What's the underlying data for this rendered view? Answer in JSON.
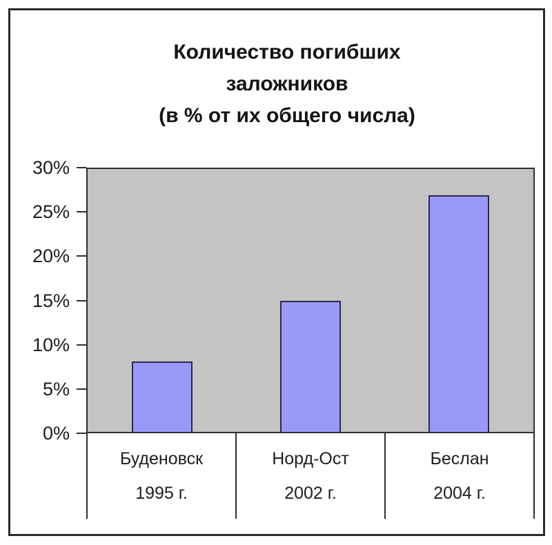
{
  "chart": {
    "title_lines": [
      "Количество погибших",
      "заложников",
      "(в % от их общего числа)"
    ],
    "ytick_labels": [
      "30%",
      "25%",
      "20%",
      "15%",
      "10%",
      "5%",
      "0%"
    ],
    "categories": [
      {
        "name": "Буденовск",
        "year": "1995 г."
      },
      {
        "name": "Норд-Ост",
        "year": "2002 г."
      },
      {
        "name": "Беслан",
        "year": "2004 г."
      }
    ]
  },
  "chart_data": {
    "type": "bar",
    "title": "Количество погибших заложников (в % от их общего числа)",
    "categories": [
      "Буденовск 1995 г.",
      "Норд-Ост 2002 г.",
      "Беслан 2004 г."
    ],
    "values": [
      8,
      15,
      27
    ],
    "unit": "%",
    "xlabel": "",
    "ylabel": "",
    "ylim": [
      0,
      30
    ],
    "ytick_step": 5,
    "grid": false,
    "legend": false,
    "bar_fill_color": "#9a99fa",
    "bar_border_color": "#2a294b",
    "plot_background_color": "#c4c4c4",
    "frame_color": "#2a2a2a"
  }
}
